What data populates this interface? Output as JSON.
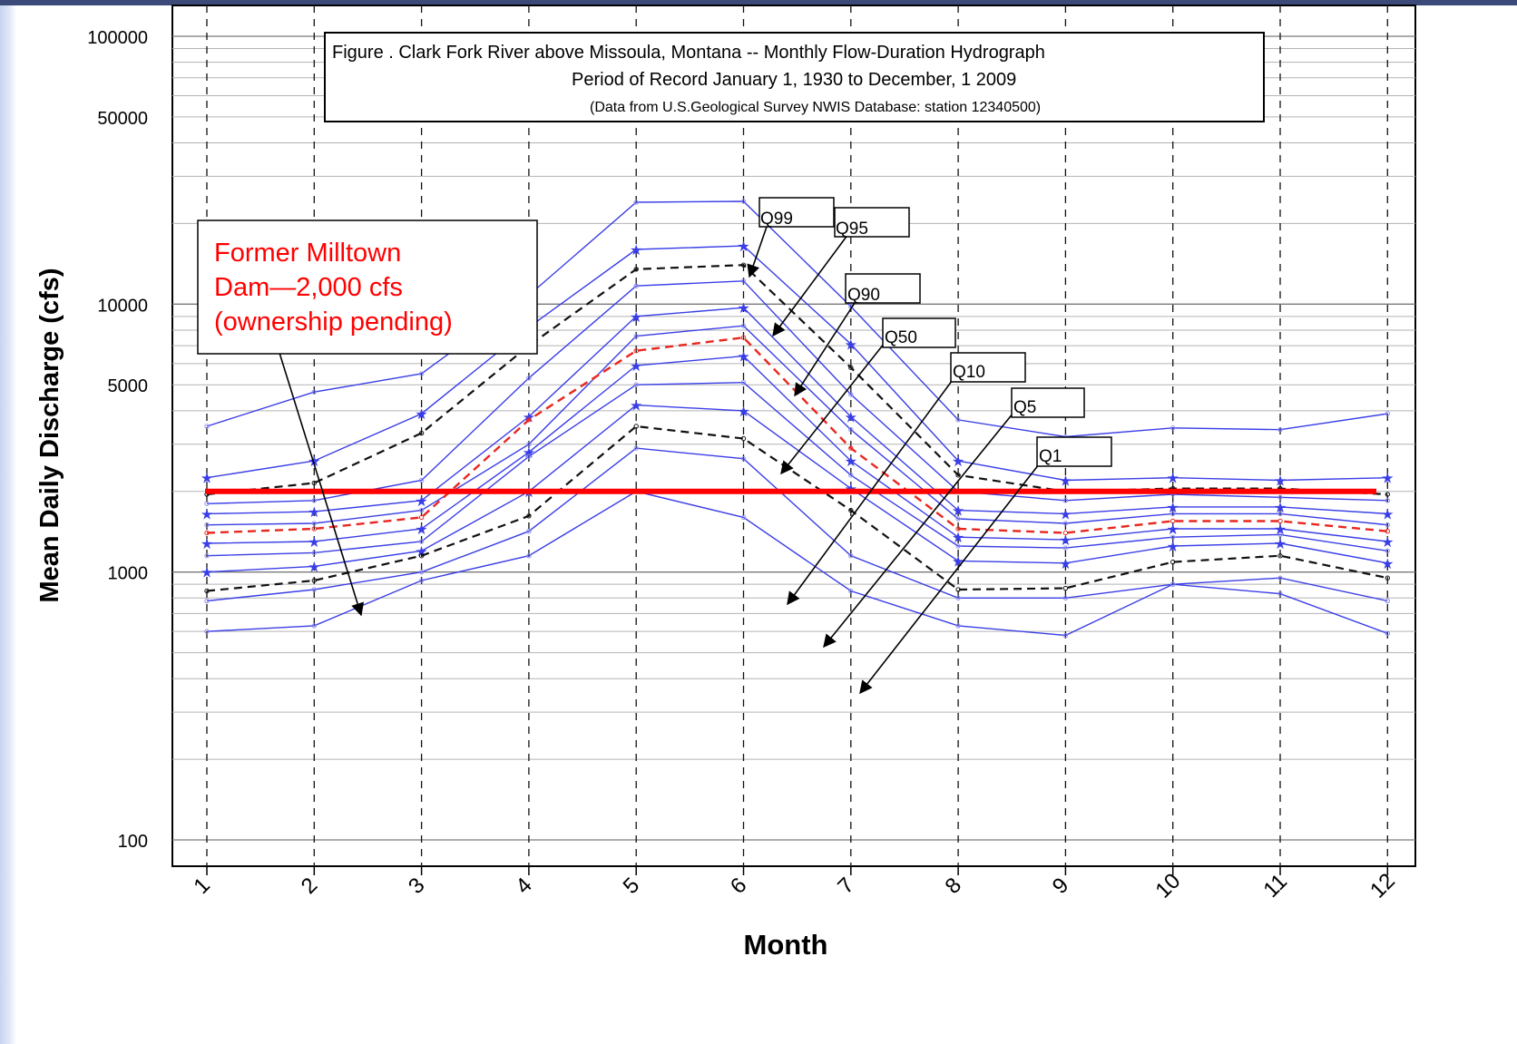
{
  "chart_data": {
    "type": "line",
    "title": {
      "line1": "Figure   . Clark Fork River above Missoula, Montana -- Monthly Flow-Duration Hydrograph",
      "line2": "Period of Record January 1, 1930 to December, 1 2009",
      "line3": "(Data from U.S.Geological Survey NWIS Database: station 12340500)"
    },
    "xlabel": "Month",
    "ylabel": "Mean Daily Discharge (cfs)",
    "x": [
      1,
      2,
      3,
      4,
      5,
      6,
      7,
      8,
      9,
      10,
      11,
      12
    ],
    "y_scale": "log",
    "ylim": [
      80,
      110000
    ],
    "y_ticks": [
      100,
      1000,
      5000,
      10000,
      50000,
      100000
    ],
    "grid": true,
    "series": [
      {
        "style": "blue",
        "marker": "none",
        "values": [
          3500,
          4700,
          5500,
          10800,
          24000,
          24200,
          9800,
          3700,
          3200,
          3450,
          3400,
          3900
        ]
      },
      {
        "style": "blue",
        "marker": "star",
        "values": [
          2250,
          2600,
          3900,
          8200,
          16000,
          16500,
          7100,
          2600,
          2200,
          2250,
          2200,
          2250
        ]
      },
      {
        "style": "black-dash",
        "marker": "none",
        "values": [
          1950,
          2150,
          3300,
          7000,
          13500,
          14000,
          5800,
          2300,
          2000,
          2050,
          2050,
          1950
        ]
      },
      {
        "style": "blue",
        "marker": "none",
        "values": [
          1800,
          1850,
          2200,
          5300,
          11700,
          12200,
          4600,
          2000,
          1850,
          1950,
          1900,
          1850
        ]
      },
      {
        "style": "blue",
        "marker": "star",
        "values": [
          1650,
          1680,
          1850,
          3800,
          9000,
          9700,
          3800,
          1700,
          1650,
          1750,
          1750,
          1650
        ]
      },
      {
        "style": "blue",
        "marker": "none",
        "values": [
          1500,
          1520,
          1700,
          3000,
          7600,
          8300,
          3400,
          1580,
          1520,
          1650,
          1650,
          1500
        ]
      },
      {
        "style": "red-dash",
        "marker": "none",
        "values": [
          1400,
          1450,
          1600,
          3700,
          6700,
          7500,
          2900,
          1450,
          1400,
          1550,
          1550,
          1420
        ]
      },
      {
        "style": "blue",
        "marker": "star",
        "values": [
          1280,
          1300,
          1450,
          2800,
          5900,
          6400,
          2600,
          1350,
          1320,
          1450,
          1450,
          1300
        ]
      },
      {
        "style": "blue",
        "marker": "none",
        "values": [
          1150,
          1180,
          1300,
          2700,
          5000,
          5100,
          2300,
          1250,
          1230,
          1350,
          1380,
          1200
        ]
      },
      {
        "style": "blue",
        "marker": "star",
        "values": [
          1000,
          1050,
          1200,
          2000,
          4200,
          4000,
          2050,
          1100,
          1080,
          1250,
          1280,
          1080
        ]
      },
      {
        "style": "black-dash",
        "marker": "none",
        "values": [
          850,
          930,
          1150,
          1620,
          3500,
          3150,
          1700,
          860,
          870,
          1090,
          1150,
          950
        ]
      },
      {
        "style": "blue",
        "marker": "none",
        "values": [
          780,
          860,
          1000,
          1420,
          2900,
          2650,
          1150,
          800,
          800,
          900,
          950,
          780
        ]
      },
      {
        "style": "blue",
        "marker": "none",
        "values": [
          600,
          630,
          930,
          1150,
          2000,
          1600,
          850,
          630,
          580,
          900,
          830,
          590
        ]
      }
    ],
    "reference_line": {
      "value": 2000,
      "color": "#ff0000"
    },
    "annotations": {
      "milltown": {
        "lines": [
          "Former Milltown",
          "Dam—2,000 cfs",
          "(ownership pending)"
        ]
      },
      "labels": [
        "Q99",
        "Q95",
        "Q90",
        "Q50",
        "Q10",
        "Q5",
        "Q1"
      ]
    },
    "colors": {
      "blue": "#3a3ee6",
      "blue_light": "#8c8ef0",
      "red": "#e8271f",
      "reference": "#ff0000",
      "black": "#111111"
    }
  }
}
